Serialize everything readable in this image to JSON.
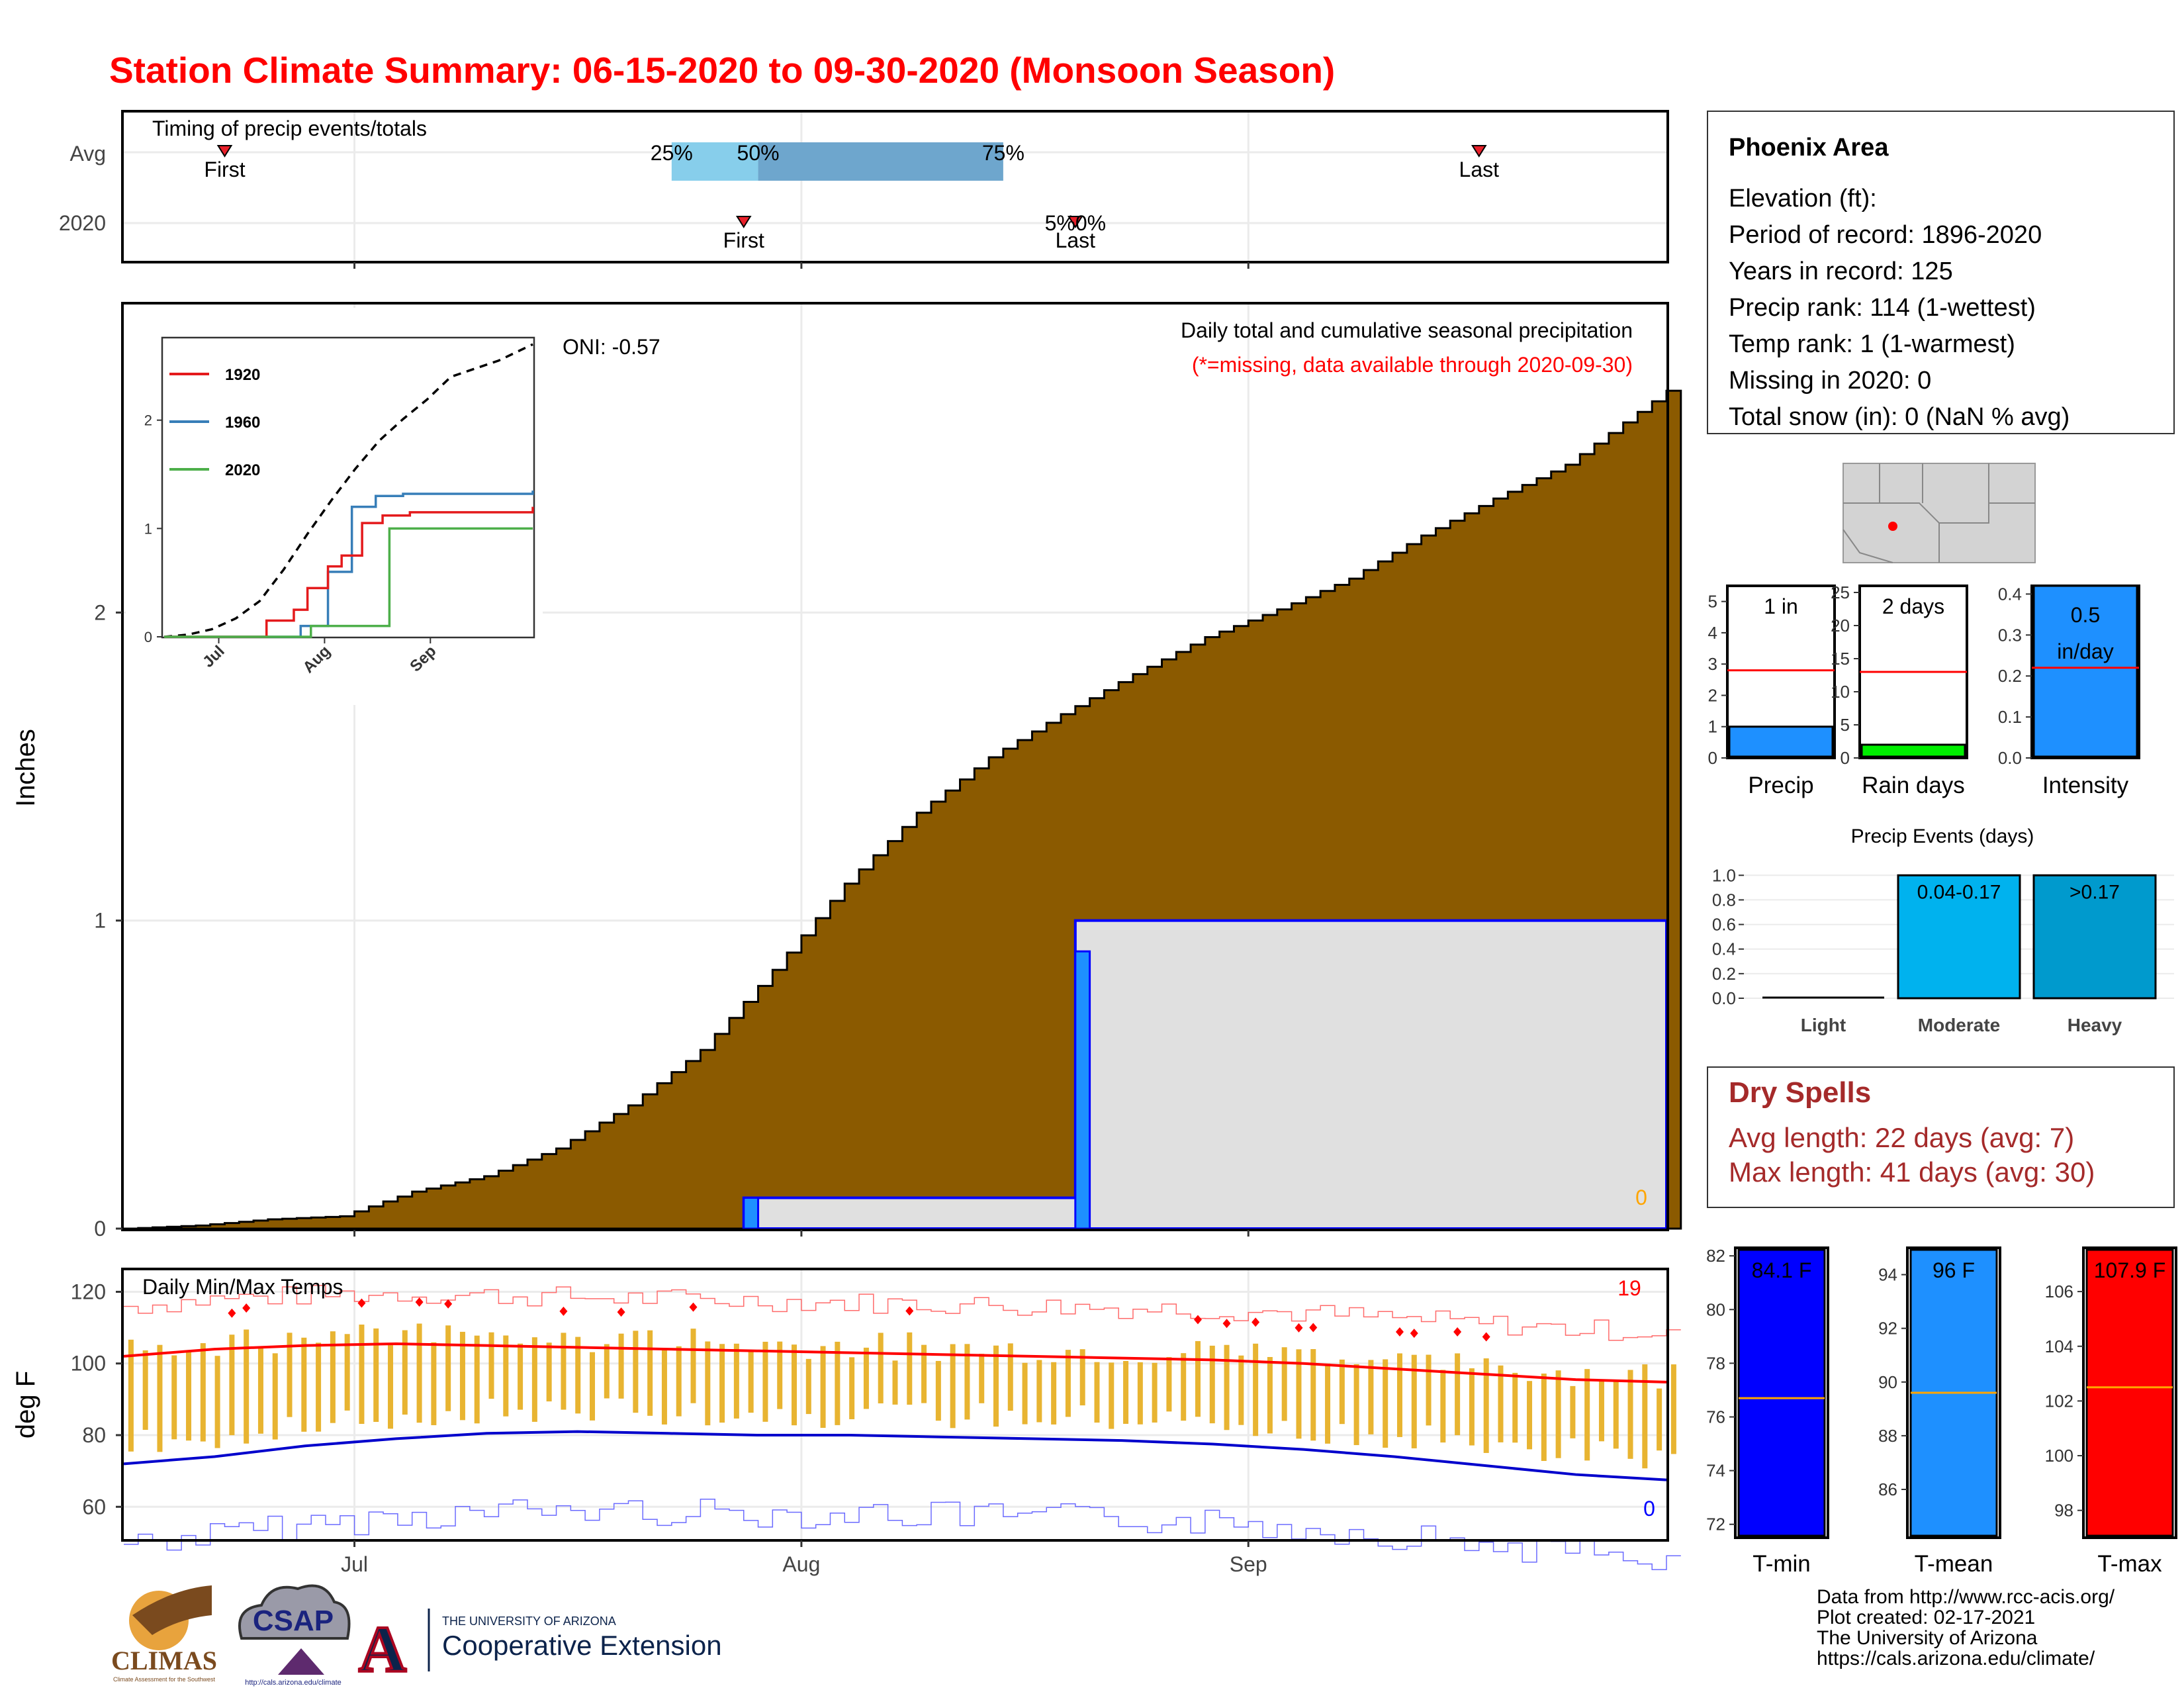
{
  "title": "Station Climate Summary: 06-15-2020 to 09-30-2020 (Monsoon Season)",
  "colors": {
    "title": "#ff0000",
    "brown": "#8b5a00",
    "light_blue": "#87ceeb",
    "mid_blue": "#6ea6cd",
    "precip_blue": "#1e90ff",
    "missing_gray": "#e0e0e0",
    "orange_bars": "#e8b431",
    "green": "#00ee00",
    "tmin_blue": "#0000ff",
    "tmax_red": "#ff0000",
    "moderate": "#00b2ee",
    "heavy": "#009acd",
    "dry_text": "#a52a2a"
  },
  "timing_panel": {
    "label": "Timing of precip events/totals",
    "rows": [
      "Avg",
      "2020"
    ],
    "first_label": "First",
    "last_label": "Last",
    "avg_first_date": "2020-06-22",
    "avg_last_date": "2020-09-17",
    "avg_q25_date": "2020-07-23",
    "avg_q50_date": "2020-07-29",
    "avg_q75_date": "2020-08-15",
    "q25_label": "25%",
    "q50_label": "50%",
    "q75_label": "75%",
    "obs2020_first_date": "2020-07-28",
    "obs2020_last_date": "2020-08-20",
    "obs2020_overlap_label": "5%0%"
  },
  "precip_panel": {
    "ylabel": "Inches",
    "y_ticks": [
      "0",
      "1",
      "2"
    ],
    "ylim": [
      0,
      3
    ],
    "legend_title": "Daily total and cumulative seasonal precipitation",
    "legend_subtitle": "(*=missing, data available through 2020-09-30)",
    "oni_label": "ONI: -0.57",
    "corner_value": "0",
    "avg_cumulative": {
      "dates": [
        "2020-06-15",
        "2020-06-20",
        "2020-06-25",
        "2020-06-30",
        "2020-07-05",
        "2020-07-10",
        "2020-07-15",
        "2020-07-20",
        "2020-07-25",
        "2020-07-30",
        "2020-08-04",
        "2020-08-09",
        "2020-08-14",
        "2020-08-19",
        "2020-08-24",
        "2020-08-29",
        "2020-09-03",
        "2020-09-08",
        "2020-09-13",
        "2020-09-18",
        "2020-09-23",
        "2020-09-30"
      ],
      "values": [
        0.0,
        0.01,
        0.03,
        0.04,
        0.12,
        0.17,
        0.26,
        0.4,
        0.58,
        0.84,
        1.12,
        1.35,
        1.53,
        1.67,
        1.8,
        1.92,
        2.01,
        2.11,
        2.25,
        2.37,
        2.48,
        2.72
      ]
    },
    "obs_2020": {
      "dates": [
        "2020-06-15",
        "2020-07-28",
        "2020-08-20",
        "2020-09-30"
      ],
      "cumulative": [
        0.0,
        0.1,
        1.0,
        1.0
      ],
      "daily": [
        {
          "date": "2020-07-28",
          "value": 0.1
        },
        {
          "date": "2020-08-20",
          "value": 0.9
        }
      ]
    },
    "inset": {
      "y_ticks": [
        "0",
        "1",
        "2"
      ],
      "x_ticks": [
        "Jul",
        "Aug",
        "Sep"
      ],
      "legend": [
        {
          "name": "1920",
          "color": "#e41a1c"
        },
        {
          "name": "1960",
          "color": "#377eb8"
        },
        {
          "name": "2020",
          "color": "#4daf4a"
        }
      ],
      "mean_line": [
        0.0,
        0.02,
        0.07,
        0.17,
        0.33,
        0.62,
        0.95,
        1.26,
        1.55,
        1.81,
        2.01,
        2.19,
        2.4,
        2.55,
        2.7
      ],
      "mean_days": [
        0,
        7,
        14,
        21,
        28,
        35,
        42,
        49,
        56,
        63,
        70,
        77,
        84,
        98,
        108
      ],
      "series_1920": {
        "days": [
          0,
          30,
          38,
          42,
          48,
          52,
          58,
          64,
          72,
          108
        ],
        "values": [
          0,
          0.15,
          0.25,
          0.45,
          0.65,
          0.75,
          1.05,
          1.12,
          1.15,
          1.2
        ]
      },
      "series_1960": {
        "days": [
          0,
          40,
          48,
          55,
          62,
          70,
          108
        ],
        "values": [
          0,
          0.1,
          0.6,
          1.2,
          1.3,
          1.32,
          1.35
        ]
      },
      "series_2020": {
        "days": [
          0,
          43,
          66,
          108
        ],
        "values": [
          0,
          0.1,
          1.0,
          1.0
        ]
      }
    }
  },
  "temp_panel": {
    "ylabel": "deg F",
    "y_ticks": [
      "60",
      "80",
      "100",
      "120"
    ],
    "label": "Daily Min/Max Temps",
    "top_right_value": "19",
    "bottom_right_value": "0",
    "x_ticks": [
      "Jul",
      "Aug",
      "Sep"
    ],
    "avg_tmax": [
      102,
      104,
      105,
      105.5,
      105,
      104.5,
      104,
      103.5,
      103,
      102.5,
      102,
      101.5,
      101,
      100,
      98.5,
      97,
      95.5,
      94.8
    ],
    "avg_tmin": [
      72,
      74,
      77,
      79,
      80.5,
      81,
      80.5,
      80,
      80,
      79.5,
      79,
      78.5,
      77.5,
      76,
      74,
      71.5,
      69,
      67.5
    ]
  },
  "info_box": {
    "station": "Phoenix Area",
    "lines": [
      "Elevation (ft):",
      "Period of record: 1896-2020",
      "Years in record: 125",
      "Precip rank: 114 (1-wettest)",
      "Temp rank: 1 (1-warmest)",
      "Missing in 2020: 0",
      "Total snow (in): 0 (NaN % avg)"
    ]
  },
  "mini_bars": [
    {
      "xlabel": "Precip",
      "top_label": "1 in",
      "y_ticks": [
        "0",
        "1",
        "2",
        "3",
        "4",
        "5"
      ],
      "ymax": 5.5,
      "value": 1.0,
      "avg": 2.8,
      "color": "#1e90ff"
    },
    {
      "xlabel": "Rain days",
      "top_label": "2 days",
      "y_ticks": [
        "0",
        "5",
        "10",
        "15",
        "20",
        "25"
      ],
      "ymax": 26,
      "value": 2,
      "avg": 13,
      "color": "#00ee00"
    },
    {
      "xlabel": "Intensity",
      "top_label_1": "0.5",
      "top_label_2": "in/day",
      "y_ticks": [
        "0.0",
        "0.1",
        "0.2",
        "0.3",
        "0.4"
      ],
      "ymax": 0.42,
      "value": 0.5,
      "avg": 0.22,
      "color": "#1e90ff"
    }
  ],
  "precip_events": {
    "title": "Precip Events (days)",
    "categories": [
      "Light",
      "Moderate",
      "Heavy"
    ],
    "values": [
      0,
      1.0,
      1.0
    ],
    "labels": [
      "",
      "0.04-0.17",
      ">0.17"
    ],
    "y_ticks": [
      "0.0",
      "0.2",
      "0.4",
      "0.6",
      "0.8",
      "1.0"
    ]
  },
  "dry_spells": {
    "title": "Dry Spells",
    "avg_line": "Avg length: 22 days (avg: 7)",
    "max_line": "Max length: 41 days (avg: 30)"
  },
  "temp_bars": [
    {
      "xlabel": "T-min",
      "value_label": "84.1 F",
      "y_ticks": [
        "72",
        "74",
        "76",
        "78",
        "80",
        "82"
      ],
      "ymin": 71.5,
      "ymax": 82.3,
      "value": 84.1,
      "avg": 76.7,
      "color": "#0000ff"
    },
    {
      "xlabel": "T-mean",
      "value_label": "96 F",
      "y_ticks": [
        "86",
        "88",
        "90",
        "92",
        "94"
      ],
      "ymin": 84.2,
      "ymax": 95.0,
      "value": 96,
      "avg": 89.6,
      "color": "#1e90ff"
    },
    {
      "xlabel": "T-max",
      "value_label": "107.9 F",
      "y_ticks": [
        "98",
        "100",
        "102",
        "104",
        "106"
      ],
      "ymin": 97.0,
      "ymax": 107.6,
      "value": 107.9,
      "avg": 102.5,
      "color": "#ff0000"
    }
  ],
  "footer": {
    "lines": [
      "Data from http://www.rcc-acis.org/",
      "Plot created: 02-17-2021",
      "The University of Arizona",
      "https://cals.arizona.edu/climate/"
    ],
    "climas": "CLIMAS",
    "climas_sub": "Climate Assessment for the Southwest",
    "csap": "CSAP",
    "csap_url": "http://cals.arizona.edu/climate",
    "ua_top": "THE UNIVERSITY OF ARIZONA",
    "ua_bottom": "Cooperative Extension",
    "ua_letter": "A"
  }
}
